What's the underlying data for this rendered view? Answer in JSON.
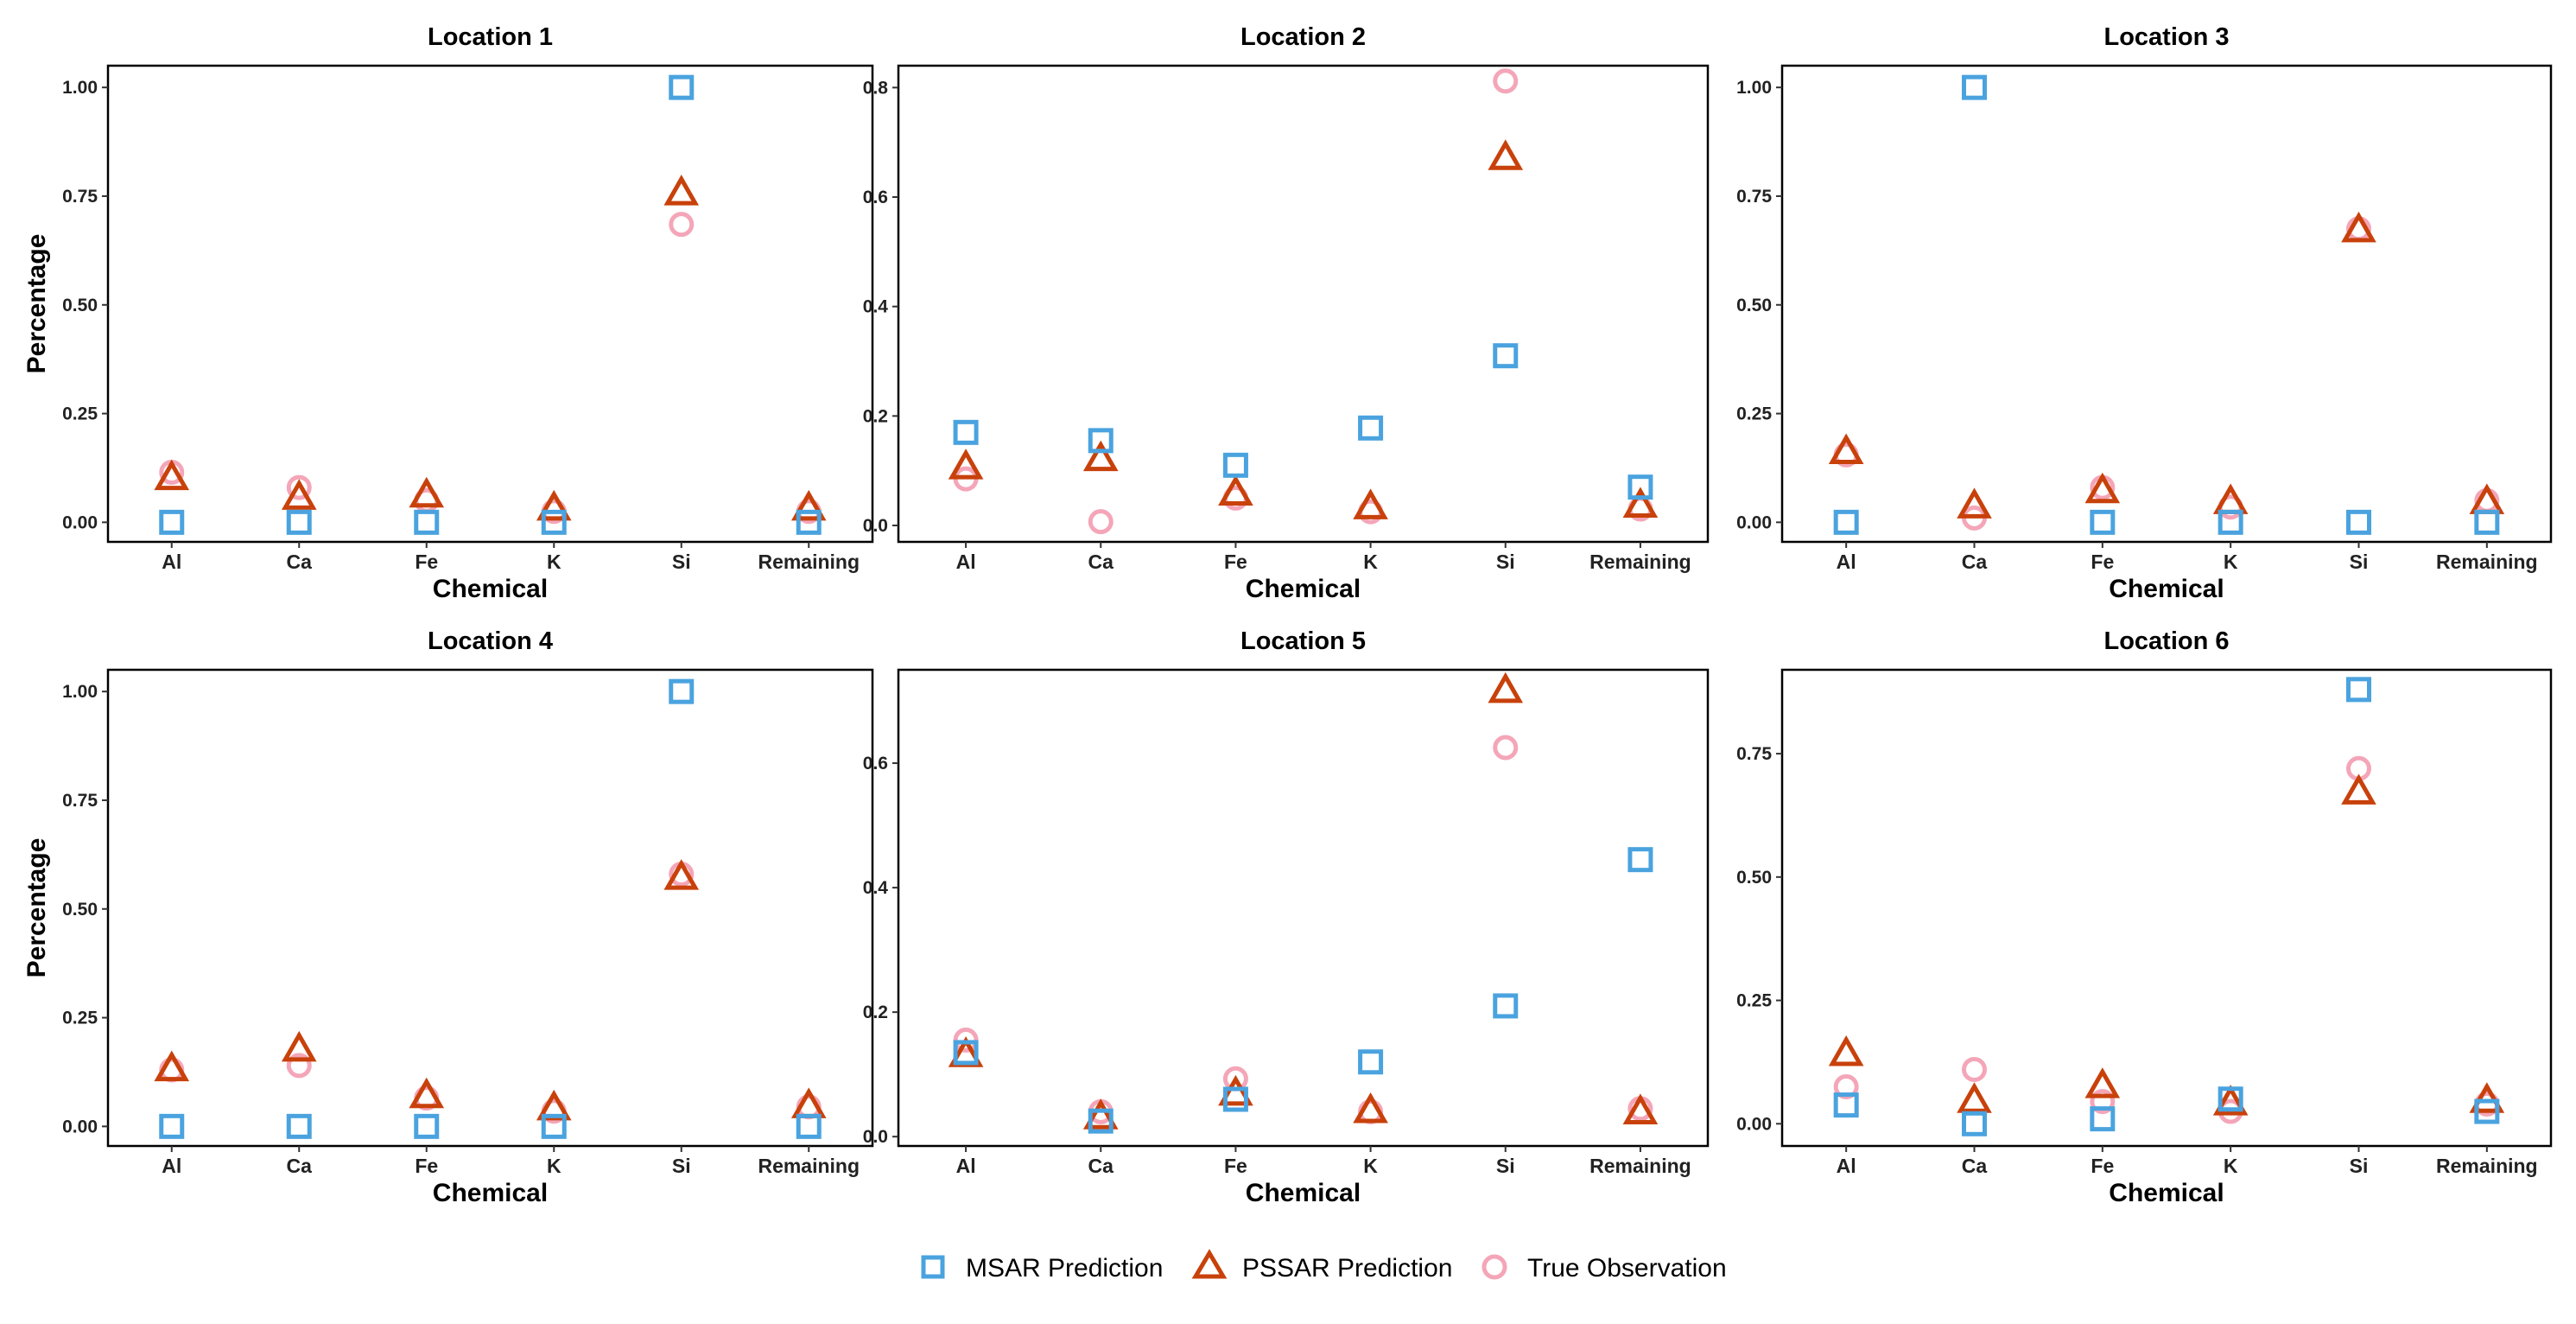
{
  "chart_data": [
    {
      "type": "scatter",
      "title": "Location 1",
      "xlabel": "Chemical",
      "ylabel": "Percentage",
      "categories": [
        "Al",
        "Ca",
        "Fe",
        "K",
        "Si",
        "Remaining"
      ],
      "ylim": [
        -0.045,
        1.05
      ],
      "yticks": [
        0,
        0.25,
        0.5,
        0.75,
        1.0
      ],
      "ytick_labels": [
        "0.00",
        "0.25",
        "0.50",
        "0.75",
        "1.00"
      ],
      "series": [
        {
          "name": "MSAR Prediction",
          "values": [
            0.0,
            0.0,
            0.0,
            0.0,
            1.0,
            0.0
          ]
        },
        {
          "name": "PSSAR Prediction",
          "values": [
            0.1,
            0.055,
            0.06,
            0.03,
            0.755,
            0.03
          ]
        },
        {
          "name": "True Observation",
          "values": [
            0.115,
            0.08,
            0.05,
            0.025,
            0.685,
            0.025
          ]
        }
      ]
    },
    {
      "type": "scatter",
      "title": "Location 2",
      "xlabel": "Chemical",
      "ylabel": "",
      "categories": [
        "Al",
        "Ca",
        "Fe",
        "K",
        "Si",
        "Remaining"
      ],
      "ylim": [
        -0.03,
        0.84
      ],
      "yticks": [
        0,
        0.2,
        0.4,
        0.6,
        0.8
      ],
      "ytick_labels": [
        "0.0",
        "0.2",
        "0.4",
        "0.6",
        "0.8"
      ],
      "series": [
        {
          "name": "MSAR Prediction",
          "values": [
            0.17,
            0.155,
            0.11,
            0.178,
            0.31,
            0.07
          ]
        },
        {
          "name": "PSSAR Prediction",
          "values": [
            0.105,
            0.12,
            0.057,
            0.032,
            0.67,
            0.035
          ]
        },
        {
          "name": "True Observation",
          "values": [
            0.085,
            0.007,
            0.05,
            0.025,
            0.812,
            0.03
          ]
        }
      ]
    },
    {
      "type": "scatter",
      "title": "Location 3",
      "xlabel": "Chemical",
      "ylabel": "",
      "categories": [
        "Al",
        "Ca",
        "Fe",
        "K",
        "Si",
        "Remaining"
      ],
      "ylim": [
        -0.045,
        1.05
      ],
      "yticks": [
        0,
        0.25,
        0.5,
        0.75,
        1.0
      ],
      "ytick_labels": [
        "0.00",
        "0.25",
        "0.50",
        "0.75",
        "1.00"
      ],
      "series": [
        {
          "name": "MSAR Prediction",
          "values": [
            0.0,
            1.0,
            0.0,
            0.0,
            0.0,
            0.0
          ]
        },
        {
          "name": "PSSAR Prediction",
          "values": [
            0.16,
            0.035,
            0.07,
            0.045,
            0.67,
            0.045
          ]
        },
        {
          "name": "True Observation",
          "values": [
            0.155,
            0.01,
            0.08,
            0.035,
            0.675,
            0.05
          ]
        }
      ]
    },
    {
      "type": "scatter",
      "title": "Location 4",
      "xlabel": "Chemical",
      "ylabel": "Percentage",
      "categories": [
        "Al",
        "Ca",
        "Fe",
        "K",
        "Si",
        "Remaining"
      ],
      "ylim": [
        -0.045,
        1.05
      ],
      "yticks": [
        0,
        0.25,
        0.5,
        0.75,
        1.0
      ],
      "ytick_labels": [
        "0.00",
        "0.25",
        "0.50",
        "0.75",
        "1.00"
      ],
      "series": [
        {
          "name": "MSAR Prediction",
          "values": [
            0.0,
            0.0,
            0.0,
            0.0,
            1.0,
            0.0
          ]
        },
        {
          "name": "PSSAR Prediction",
          "values": [
            0.13,
            0.175,
            0.068,
            0.04,
            0.57,
            0.045
          ]
        },
        {
          "name": "True Observation",
          "values": [
            0.13,
            0.14,
            0.065,
            0.035,
            0.58,
            0.045
          ]
        }
      ]
    },
    {
      "type": "scatter",
      "title": "Location 5",
      "xlabel": "Chemical",
      "ylabel": "",
      "categories": [
        "Al",
        "Ca",
        "Fe",
        "K",
        "Si",
        "Remaining"
      ],
      "ylim": [
        -0.015,
        0.75
      ],
      "yticks": [
        0,
        0.2,
        0.4,
        0.6
      ],
      "ytick_labels": [
        "0.0",
        "0.2",
        "0.4",
        "0.6"
      ],
      "series": [
        {
          "name": "MSAR Prediction",
          "values": [
            0.135,
            0.025,
            0.06,
            0.12,
            0.21,
            0.445
          ]
        },
        {
          "name": "PSSAR Prediction",
          "values": [
            0.13,
            0.03,
            0.068,
            0.04,
            0.715,
            0.038
          ]
        },
        {
          "name": "True Observation",
          "values": [
            0.155,
            0.04,
            0.093,
            0.04,
            0.625,
            0.045
          ]
        }
      ]
    },
    {
      "type": "scatter",
      "title": "Location 6",
      "xlabel": "Chemical",
      "ylabel": "",
      "categories": [
        "Al",
        "Ca",
        "Fe",
        "K",
        "Si",
        "Remaining"
      ],
      "ylim": [
        -0.045,
        0.92
      ],
      "yticks": [
        0,
        0.25,
        0.5,
        0.75
      ],
      "ytick_labels": [
        "0.00",
        "0.25",
        "0.50",
        "0.75"
      ],
      "series": [
        {
          "name": "MSAR Prediction",
          "values": [
            0.038,
            0.0,
            0.01,
            0.05,
            0.88,
            0.025
          ]
        },
        {
          "name": "PSSAR Prediction",
          "values": [
            0.14,
            0.045,
            0.075,
            0.04,
            0.67,
            0.045
          ]
        },
        {
          "name": "True Observation",
          "values": [
            0.075,
            0.11,
            0.045,
            0.025,
            0.72,
            0.04
          ]
        }
      ]
    }
  ],
  "legend": {
    "position": "bottom",
    "items": [
      {
        "label": "MSAR Prediction",
        "shape": "square-icon",
        "color": "#4aa3df"
      },
      {
        "label": "PSSAR Prediction",
        "shape": "triangle-icon",
        "color": "#c8410b"
      },
      {
        "label": "True Observation",
        "shape": "circle-icon",
        "color": "#f4a6b8"
      }
    ]
  }
}
